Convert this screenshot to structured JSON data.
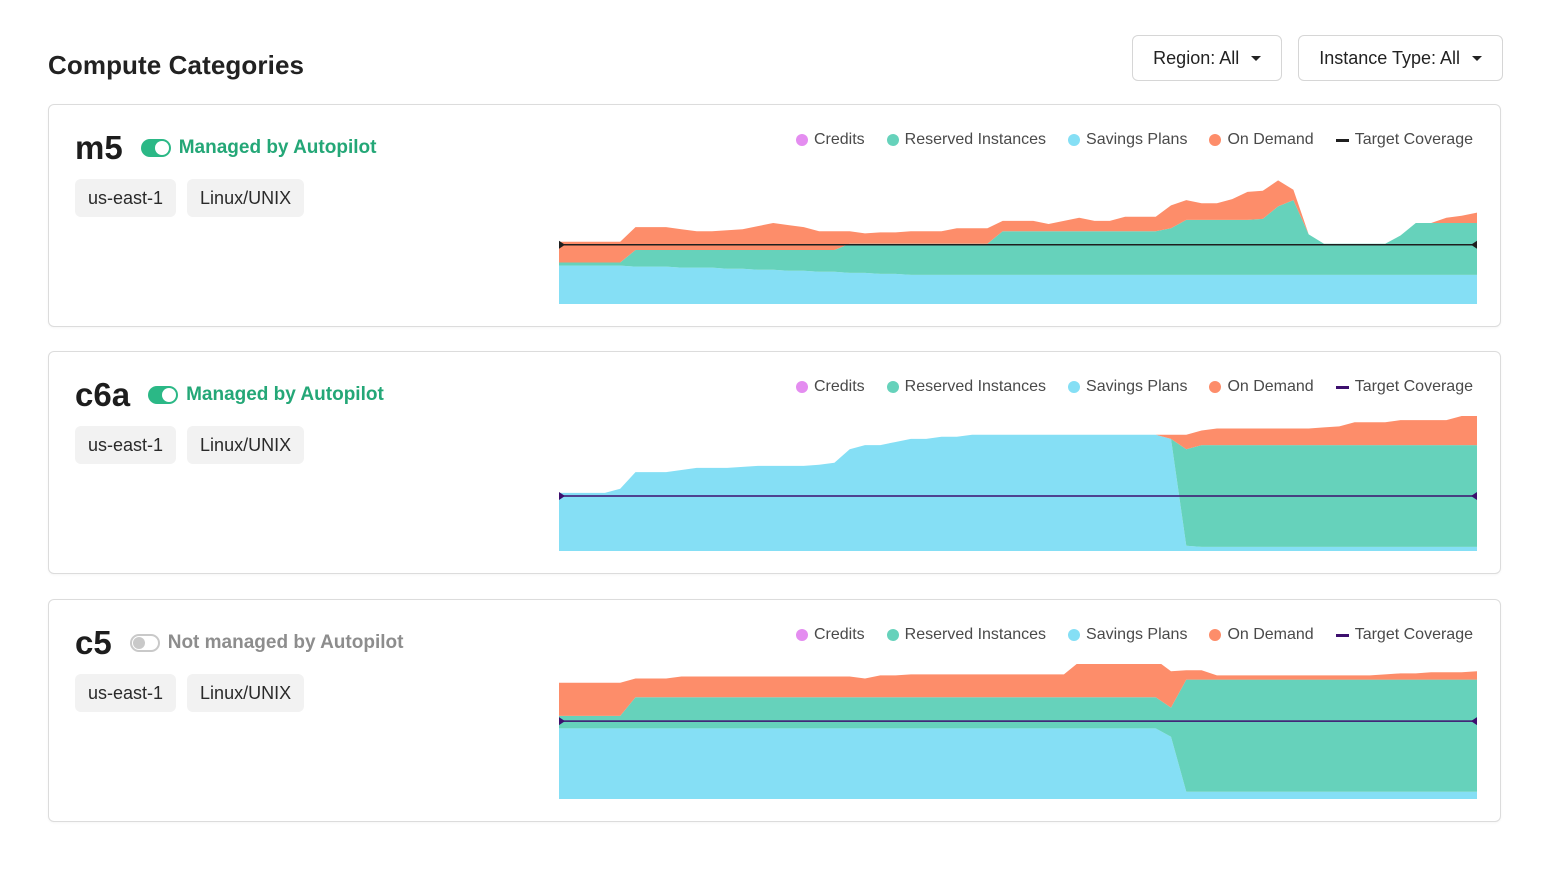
{
  "page": {
    "title": "Compute Categories",
    "filters": {
      "region_label": "Region: All",
      "instance_type_label": "Instance Type: All"
    }
  },
  "legend": {
    "credits": "Credits",
    "reserved": "Reserved Instances",
    "savings": "Savings Plans",
    "ondemand": "On Demand",
    "target": "Target Coverage"
  },
  "colors": {
    "credits": "#e48df0",
    "reserved": "#66d2bb",
    "savings": "#85dff5",
    "ondemand": "#fd8d6a",
    "autopilot_on": "#2bb886"
  },
  "cards": [
    {
      "name": "m5",
      "managed": true,
      "status_text": "Managed by Autopilot",
      "tags": [
        "us-east-1",
        "Linux/UNIX"
      ],
      "target_line_color": "#1f1f1f"
    },
    {
      "name": "c6a",
      "managed": true,
      "status_text": "Managed by Autopilot",
      "tags": [
        "us-east-1",
        "Linux/UNIX"
      ],
      "target_line_color": "#3d0f6e"
    },
    {
      "name": "c5",
      "managed": false,
      "status_text": "Not managed by Autopilot",
      "tags": [
        "us-east-1",
        "Linux/UNIX"
      ],
      "target_line_color": "#3d0f6e"
    }
  ],
  "chart_data": [
    {
      "type": "area",
      "title": "m5",
      "stacked": true,
      "x": [
        0,
        1,
        2,
        3,
        4,
        5,
        6,
        7,
        8,
        9,
        10,
        11,
        12,
        13,
        14,
        15,
        16,
        17,
        18,
        19,
        20,
        21,
        22,
        23,
        24,
        25,
        26,
        27,
        28,
        29,
        30,
        31,
        32,
        33,
        34,
        35,
        36,
        37,
        38,
        39,
        40,
        41,
        42,
        43,
        44,
        45,
        46,
        47,
        48,
        49,
        50,
        51,
        52,
        53,
        54,
        55,
        56,
        57,
        58,
        59,
        60
      ],
      "ylim": [
        0,
        130
      ],
      "target": 57,
      "series": [
        {
          "name": "Savings Plans",
          "values": [
            37,
            37,
            37,
            37,
            37,
            36,
            36,
            36,
            35,
            35,
            35,
            34,
            34,
            33,
            33,
            32,
            32,
            31,
            31,
            30,
            30,
            29,
            29,
            28,
            28,
            28,
            28,
            28,
            28,
            28,
            28,
            28,
            28,
            28,
            28,
            28,
            28,
            28,
            28,
            28,
            28,
            28,
            28,
            28,
            28,
            28,
            28,
            28,
            28,
            28,
            28,
            28,
            28,
            28,
            28,
            28,
            28,
            28,
            28,
            28,
            28
          ]
        },
        {
          "name": "Reserved Instances",
          "values": [
            3,
            3,
            3,
            3,
            3,
            16,
            16,
            16,
            17,
            17,
            17,
            18,
            18,
            19,
            19,
            20,
            20,
            21,
            21,
            28,
            28,
            29,
            29,
            30,
            30,
            30,
            30,
            30,
            30,
            42,
            42,
            42,
            42,
            42,
            42,
            42,
            42,
            42,
            42,
            42,
            45,
            53,
            53,
            53,
            53,
            53,
            54,
            66,
            72,
            39,
            30,
            30,
            30,
            30,
            30,
            38,
            50,
            50,
            50,
            50,
            50
          ]
        },
        {
          "name": "On Demand",
          "values": [
            20,
            20,
            20,
            20,
            20,
            22,
            22,
            22,
            20,
            18,
            18,
            19,
            20,
            23,
            26,
            24,
            22,
            18,
            18,
            12,
            10,
            11,
            11,
            12,
            12,
            12,
            15,
            15,
            15,
            10,
            10,
            10,
            7,
            10,
            13,
            10,
            10,
            14,
            14,
            14,
            22,
            19,
            16,
            16,
            20,
            27,
            27,
            25,
            10,
            0,
            0,
            0,
            0,
            0,
            0,
            0,
            0,
            0,
            5,
            7,
            10
          ]
        },
        {
          "name": "Credits",
          "values": [
            0,
            0,
            0,
            0,
            0,
            0,
            0,
            0,
            0,
            0,
            0,
            0,
            0,
            0,
            0,
            0,
            0,
            0,
            0,
            0,
            0,
            0,
            0,
            0,
            0,
            0,
            0,
            0,
            0,
            0,
            0,
            0,
            0,
            0,
            0,
            0,
            0,
            0,
            0,
            0,
            0,
            0,
            0,
            0,
            0,
            0,
            0,
            0,
            0,
            0,
            0,
            0,
            0,
            0,
            0,
            0,
            0,
            0,
            0,
            0,
            0
          ]
        }
      ]
    },
    {
      "type": "area",
      "title": "c6a",
      "stacked": true,
      "x": [
        0,
        1,
        2,
        3,
        4,
        5,
        6,
        7,
        8,
        9,
        10,
        11,
        12,
        13,
        14,
        15,
        16,
        17,
        18,
        19,
        20,
        21,
        22,
        23,
        24,
        25,
        26,
        27,
        28,
        29,
        30,
        31,
        32,
        33,
        34,
        35,
        36,
        37,
        38,
        39,
        40,
        41,
        42,
        43,
        44,
        45,
        46,
        47,
        48,
        49,
        50,
        51,
        52,
        53,
        54,
        55,
        56,
        57,
        58,
        59,
        60
      ],
      "ylim": [
        0,
        130
      ],
      "target": 53,
      "series": [
        {
          "name": "Savings Plans",
          "values": [
            56,
            56,
            56,
            56,
            60,
            76,
            76,
            76,
            78,
            80,
            80,
            80,
            81,
            82,
            82,
            82,
            82,
            83,
            85,
            98,
            102,
            102,
            105,
            108,
            108,
            110,
            110,
            112,
            112,
            112,
            112,
            112,
            112,
            112,
            112,
            112,
            112,
            112,
            112,
            112,
            108,
            5,
            4,
            4,
            4,
            4,
            4,
            4,
            4,
            4,
            4,
            4,
            4,
            4,
            4,
            4,
            4,
            4,
            4,
            4,
            4
          ]
        },
        {
          "name": "Reserved Instances",
          "values": [
            0,
            0,
            0,
            0,
            0,
            0,
            0,
            0,
            0,
            0,
            0,
            0,
            0,
            0,
            0,
            0,
            0,
            0,
            0,
            0,
            0,
            0,
            0,
            0,
            0,
            0,
            0,
            0,
            0,
            0,
            0,
            0,
            0,
            0,
            0,
            0,
            0,
            0,
            0,
            0,
            0,
            93,
            98,
            98,
            98,
            98,
            98,
            98,
            98,
            98,
            98,
            98,
            98,
            98,
            98,
            98,
            98,
            98,
            98,
            98,
            98
          ]
        },
        {
          "name": "On Demand",
          "values": [
            0,
            0,
            0,
            0,
            0,
            0,
            0,
            0,
            0,
            0,
            0,
            0,
            0,
            0,
            0,
            0,
            0,
            0,
            0,
            0,
            0,
            0,
            0,
            0,
            0,
            0,
            0,
            0,
            0,
            0,
            0,
            0,
            0,
            0,
            0,
            0,
            0,
            0,
            0,
            0,
            4,
            14,
            14,
            16,
            16,
            16,
            16,
            16,
            16,
            16,
            17,
            18,
            22,
            22,
            22,
            24,
            24,
            24,
            24,
            28,
            29
          ]
        },
        {
          "name": "Credits",
          "values": [
            0,
            0,
            0,
            0,
            0,
            0,
            0,
            0,
            0,
            0,
            0,
            0,
            0,
            0,
            0,
            0,
            0,
            0,
            0,
            0,
            0,
            0,
            0,
            0,
            0,
            0,
            0,
            0,
            0,
            0,
            0,
            0,
            0,
            0,
            0,
            0,
            0,
            0,
            0,
            0,
            0,
            0,
            0,
            0,
            0,
            0,
            0,
            0,
            0,
            0,
            0,
            0,
            0,
            0,
            0,
            0,
            0,
            0,
            0,
            0,
            0
          ]
        }
      ]
    },
    {
      "type": "area",
      "title": "c5",
      "stacked": true,
      "x": [
        0,
        1,
        2,
        3,
        4,
        5,
        6,
        7,
        8,
        9,
        10,
        11,
        12,
        13,
        14,
        15,
        16,
        17,
        18,
        19,
        20,
        21,
        22,
        23,
        24,
        25,
        26,
        27,
        28,
        29,
        30,
        31,
        32,
        33,
        34,
        35,
        36,
        37,
        38,
        39,
        40,
        41,
        42,
        43,
        44,
        45,
        46,
        47,
        48,
        49,
        50,
        51,
        52,
        53,
        54,
        55,
        56,
        57,
        58,
        59,
        60
      ],
      "ylim": [
        0,
        130
      ],
      "target": 75,
      "series": [
        {
          "name": "Savings Plans",
          "values": [
            68,
            68,
            68,
            68,
            68,
            68,
            68,
            68,
            68,
            68,
            68,
            68,
            68,
            68,
            68,
            68,
            68,
            68,
            68,
            68,
            68,
            68,
            68,
            68,
            68,
            68,
            68,
            68,
            68,
            68,
            68,
            68,
            68,
            68,
            68,
            68,
            68,
            68,
            68,
            68,
            60,
            7,
            7,
            7,
            7,
            7,
            7,
            7,
            7,
            7,
            7,
            7,
            7,
            7,
            7,
            7,
            7,
            7,
            7,
            7,
            7
          ]
        },
        {
          "name": "Reserved Instances",
          "values": [
            12,
            12,
            12,
            12,
            12,
            30,
            30,
            30,
            30,
            30,
            30,
            30,
            30,
            30,
            30,
            30,
            30,
            30,
            30,
            30,
            30,
            30,
            30,
            30,
            30,
            30,
            30,
            30,
            30,
            30,
            30,
            30,
            30,
            30,
            30,
            30,
            30,
            30,
            30,
            30,
            28,
            108,
            108,
            108,
            108,
            108,
            108,
            108,
            108,
            108,
            108,
            108,
            108,
            108,
            108,
            108,
            108,
            108,
            108,
            108,
            108
          ]
        },
        {
          "name": "On Demand",
          "values": [
            32,
            32,
            32,
            32,
            32,
            18,
            18,
            18,
            20,
            20,
            20,
            20,
            20,
            20,
            20,
            20,
            20,
            20,
            20,
            20,
            18,
            21,
            21,
            22,
            22,
            22,
            22,
            22,
            22,
            22,
            22,
            22,
            22,
            22,
            34,
            34,
            34,
            36,
            36,
            36,
            35,
            9,
            9,
            4,
            4,
            4,
            4,
            4,
            4,
            4,
            4,
            4,
            4,
            4,
            5,
            6,
            6,
            7,
            7,
            7,
            8
          ]
        },
        {
          "name": "Credits",
          "values": [
            0,
            0,
            0,
            0,
            0,
            0,
            0,
            0,
            0,
            0,
            0,
            0,
            0,
            0,
            0,
            0,
            0,
            0,
            0,
            0,
            0,
            0,
            0,
            0,
            0,
            0,
            0,
            0,
            0,
            0,
            0,
            0,
            0,
            0,
            0,
            0,
            0,
            0,
            0,
            0,
            0,
            0,
            0,
            0,
            0,
            0,
            0,
            0,
            0,
            0,
            0,
            0,
            0,
            0,
            0,
            0,
            0,
            0,
            0,
            0,
            0
          ]
        }
      ]
    }
  ]
}
